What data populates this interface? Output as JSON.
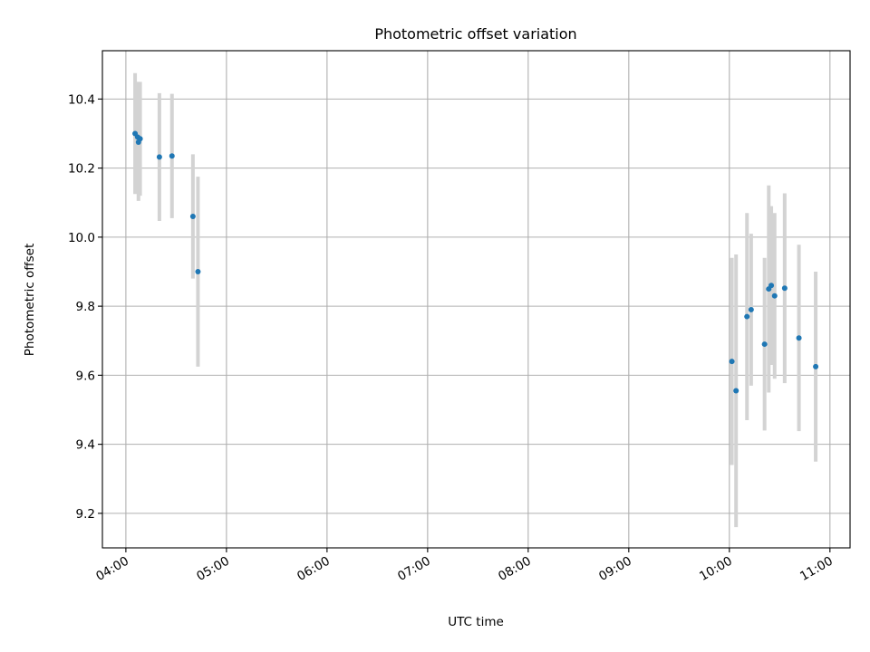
{
  "chart_data": {
    "type": "scatter",
    "title": "Photometric offset variation",
    "xlabel": "UTC time",
    "ylabel": "Photometric offset",
    "x_tick_labels": [
      "04:00",
      "05:00",
      "06:00",
      "07:00",
      "08:00",
      "09:00",
      "10:00",
      "11:00"
    ],
    "x_ticks_hours": [
      4,
      5,
      6,
      7,
      8,
      9,
      10,
      11
    ],
    "y_ticks": [
      9.2,
      9.4,
      9.6,
      9.8,
      10.0,
      10.2,
      10.4
    ],
    "y_tick_labels": [
      "9.2",
      "9.4",
      "9.6",
      "9.8",
      "10.0",
      "10.2",
      "10.4"
    ],
    "xlim": [
      "03:46",
      "11:12"
    ],
    "ylim": [
      9.1,
      10.54
    ],
    "grid": true,
    "colors": {
      "points": "#1f77b4",
      "error_bars": "#d3d3d3"
    },
    "points": [
      {
        "time": "04:05.5",
        "y": 10.3,
        "err": 0.175
      },
      {
        "time": "04:07.0",
        "y": 10.29,
        "err": 0.16
      },
      {
        "time": "04:07.5",
        "y": 10.275,
        "err": 0.17
      },
      {
        "time": "04:08.5",
        "y": 10.285,
        "err": 0.165
      },
      {
        "time": "04:20.0",
        "y": 10.232,
        "err": 0.185
      },
      {
        "time": "04:27.5",
        "y": 10.235,
        "err": 0.18
      },
      {
        "time": "04:40.0",
        "y": 10.06,
        "err": 0.18
      },
      {
        "time": "04:43.0",
        "y": 9.9,
        "err": 0.275
      },
      {
        "time": "10:01.5",
        "y": 9.64,
        "err": 0.3
      },
      {
        "time": "10:04.0",
        "y": 9.555,
        "err": 0.395
      },
      {
        "time": "10:10.5",
        "y": 9.77,
        "err": 0.3
      },
      {
        "time": "10:13.0",
        "y": 9.79,
        "err": 0.22
      },
      {
        "time": "10:21.0",
        "y": 9.69,
        "err": 0.25
      },
      {
        "time": "10:23.5",
        "y": 9.85,
        "err": 0.3
      },
      {
        "time": "10:25.0",
        "y": 9.86,
        "err": 0.23
      },
      {
        "time": "10:27.0",
        "y": 9.83,
        "err": 0.24
      },
      {
        "time": "10:33.0",
        "y": 9.852,
        "err": 0.275
      },
      {
        "time": "10:41.5",
        "y": 9.708,
        "err": 0.27
      },
      {
        "time": "10:51.5",
        "y": 9.625,
        "err": 0.275
      }
    ]
  }
}
